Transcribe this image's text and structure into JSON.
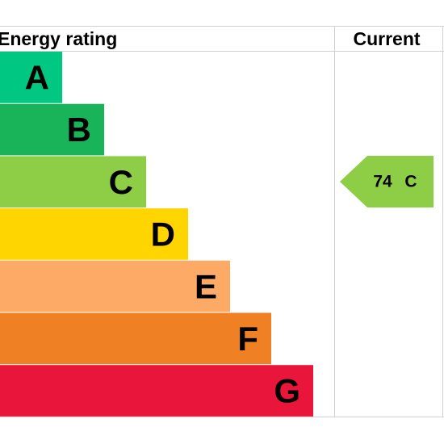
{
  "header": {
    "rating_label": "Energy rating",
    "current_label": "Current"
  },
  "bands": [
    "A",
    "B",
    "C",
    "D",
    "E",
    "F",
    "G"
  ],
  "current": {
    "score": 74,
    "band": "C"
  }
}
